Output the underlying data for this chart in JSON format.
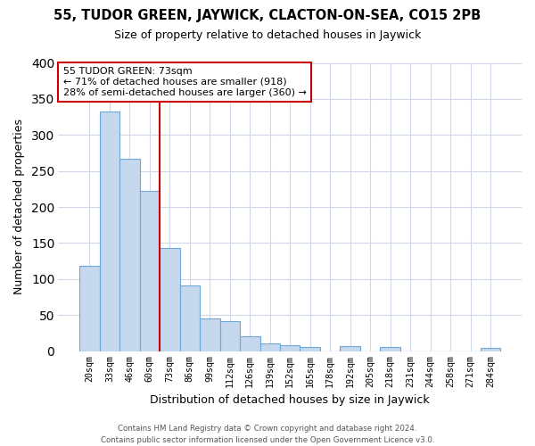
{
  "title": "55, TUDOR GREEN, JAYWICK, CLACTON-ON-SEA, CO15 2PB",
  "subtitle": "Size of property relative to detached houses in Jaywick",
  "xlabel": "Distribution of detached houses by size in Jaywick",
  "ylabel": "Number of detached properties",
  "categories": [
    "20sqm",
    "33sqm",
    "46sqm",
    "60sqm",
    "73sqm",
    "86sqm",
    "99sqm",
    "112sqm",
    "126sqm",
    "139sqm",
    "152sqm",
    "165sqm",
    "178sqm",
    "192sqm",
    "205sqm",
    "218sqm",
    "231sqm",
    "244sqm",
    "258sqm",
    "271sqm",
    "284sqm"
  ],
  "values": [
    118,
    333,
    267,
    222,
    143,
    91,
    45,
    41,
    20,
    11,
    8,
    6,
    0,
    7,
    0,
    5,
    0,
    0,
    0,
    0,
    4
  ],
  "bar_color": "#c5d8ee",
  "bar_edge_color": "#6fa8d6",
  "highlight_line_color": "#cc0000",
  "highlight_line_index": 4,
  "annotation_line1": "55 TUDOR GREEN: 73sqm",
  "annotation_line2": "← 71% of detached houses are smaller (918)",
  "annotation_line3": "28% of semi-detached houses are larger (360) →",
  "footer_line1": "Contains HM Land Registry data © Crown copyright and database right 2024.",
  "footer_line2": "Contains public sector information licensed under the Open Government Licence v3.0.",
  "ylim": [
    0,
    400
  ],
  "yticks": [
    0,
    50,
    100,
    150,
    200,
    250,
    300,
    350,
    400
  ],
  "background_color": "#ffffff",
  "grid_color": "#d0d8e8"
}
